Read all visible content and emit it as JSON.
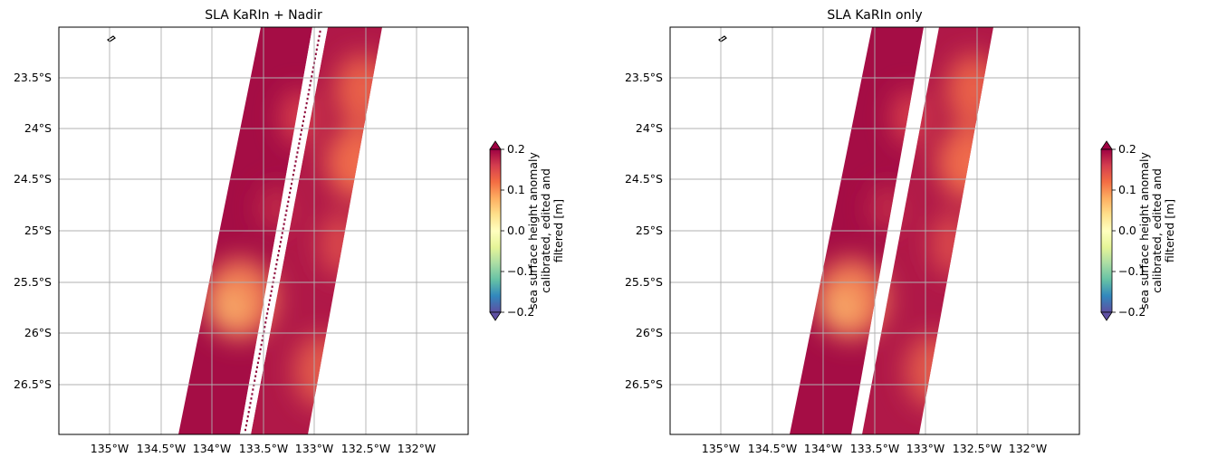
{
  "figure": {
    "panels": [
      {
        "title": "SLA KaRIn + Nadir",
        "lat_ticks": [
          "23.5°S",
          "24°S",
          "24.5°S",
          "25°S",
          "25.5°S",
          "26°S",
          "26.5°S"
        ],
        "lon_ticks": [
          "135°W",
          "134.5°W",
          "134°W",
          "133.5°W",
          "133°W",
          "132.5°W",
          "132°W"
        ],
        "colorbar": {
          "ticks": [
            "0.2",
            "0.1",
            "0.0",
            "−0.1",
            "−0.2"
          ],
          "label_lines": [
            "sea surface height anomaly",
            "calibrated, edited and",
            "filtered [m]"
          ]
        },
        "nadir_track": true
      },
      {
        "title": "SLA KaRIn only",
        "lat_ticks": [
          "23.5°S",
          "24°S",
          "24.5°S",
          "25°S",
          "25.5°S",
          "26°S",
          "26.5°S"
        ],
        "lon_ticks": [
          "135°W",
          "134.5°W",
          "134°W",
          "133.5°W",
          "133°W",
          "132.5°W",
          "132°W"
        ],
        "colorbar": {
          "ticks": [
            "0.2",
            "0.1",
            "0.0",
            "−0.1",
            "−0.2"
          ],
          "label_lines": [
            "sea surface height anomaly",
            "calibrated, edited and",
            "filtered [m]"
          ]
        },
        "nadir_track": false
      }
    ],
    "colormap": [
      "#5e4fa2",
      "#3288bd",
      "#66c2a5",
      "#abdda4",
      "#e6f598",
      "#ffffbf",
      "#fee08b",
      "#fdae61",
      "#f46d43",
      "#d53e4f",
      "#9e0142"
    ],
    "swath_colors": {
      "dark": "#a50d45",
      "mid": "#e0504a",
      "light": "#f4a05e"
    }
  }
}
